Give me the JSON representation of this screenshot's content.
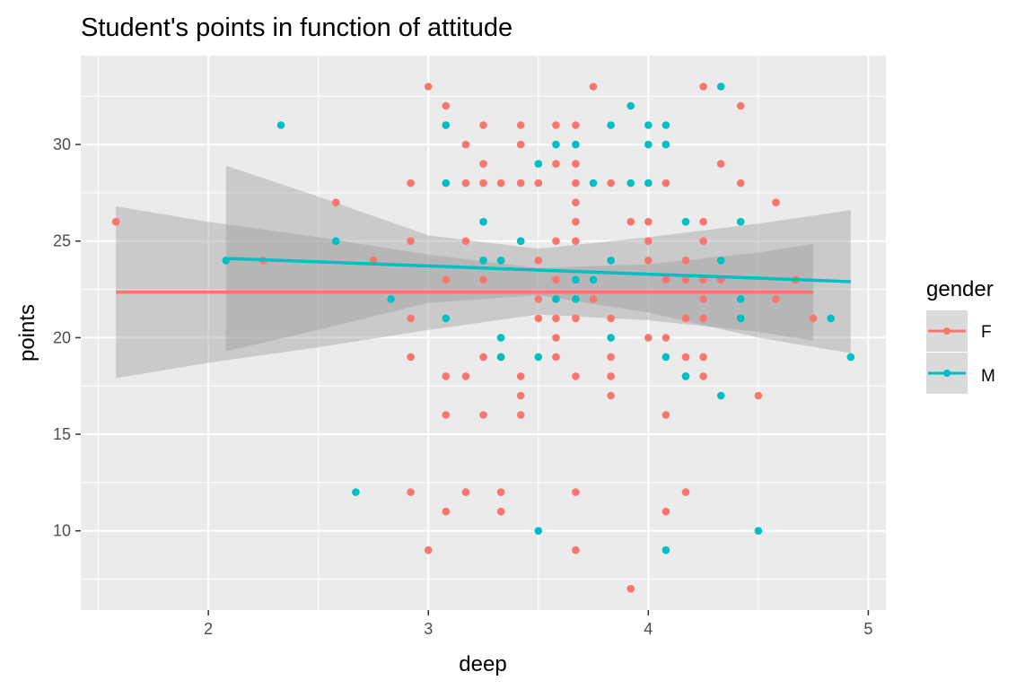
{
  "chart_data": {
    "type": "scatter",
    "title": "Student's points in function of attitude",
    "xlabel": "deep",
    "ylabel": "points",
    "xlim": [
      1.42,
      5.08
    ],
    "ylim": [
      5.9,
      34.6
    ],
    "xticks": [
      2,
      3,
      4,
      5
    ],
    "yticks": [
      10,
      15,
      20,
      25,
      30
    ],
    "xtick_labels": [
      "2",
      "3",
      "4",
      "5"
    ],
    "ytick_labels": [
      "10",
      "15",
      "20",
      "25",
      "30"
    ],
    "grid": true,
    "legend": {
      "title": "gender",
      "position": "right"
    },
    "colors": {
      "F": "#F8766D",
      "M": "#00BFC4",
      "panel": "#EBEBEB",
      "grid": "#FFFFFF",
      "band": "#999999"
    },
    "series": [
      {
        "name": "F",
        "color": "#F8766D",
        "points": [
          [
            1.58,
            26
          ],
          [
            2.25,
            24
          ],
          [
            2.58,
            27
          ],
          [
            2.75,
            24
          ],
          [
            2.92,
            28
          ],
          [
            2.92,
            25
          ],
          [
            2.92,
            21
          ],
          [
            2.92,
            19
          ],
          [
            2.92,
            12
          ],
          [
            3.0,
            33
          ],
          [
            3.0,
            9
          ],
          [
            3.08,
            32
          ],
          [
            3.08,
            31
          ],
          [
            3.08,
            23
          ],
          [
            3.08,
            18
          ],
          [
            3.08,
            16
          ],
          [
            3.08,
            11
          ],
          [
            3.17,
            30
          ],
          [
            3.17,
            28
          ],
          [
            3.17,
            25
          ],
          [
            3.17,
            18
          ],
          [
            3.17,
            12
          ],
          [
            3.25,
            31
          ],
          [
            3.25,
            29
          ],
          [
            3.25,
            28
          ],
          [
            3.25,
            23
          ],
          [
            3.25,
            19
          ],
          [
            3.25,
            16
          ],
          [
            3.33,
            28
          ],
          [
            3.33,
            24
          ],
          [
            3.33,
            19
          ],
          [
            3.33,
            12
          ],
          [
            3.33,
            11
          ],
          [
            3.42,
            31
          ],
          [
            3.42,
            30
          ],
          [
            3.42,
            28
          ],
          [
            3.42,
            25
          ],
          [
            3.42,
            18
          ],
          [
            3.42,
            17
          ],
          [
            3.42,
            16
          ],
          [
            3.5,
            28
          ],
          [
            3.5,
            24
          ],
          [
            3.5,
            22
          ],
          [
            3.5,
            21
          ],
          [
            3.58,
            31
          ],
          [
            3.58,
            29
          ],
          [
            3.58,
            25
          ],
          [
            3.58,
            23
          ],
          [
            3.58,
            22
          ],
          [
            3.58,
            21
          ],
          [
            3.58,
            20
          ],
          [
            3.58,
            19
          ],
          [
            3.67,
            31
          ],
          [
            3.67,
            29
          ],
          [
            3.67,
            28
          ],
          [
            3.67,
            27
          ],
          [
            3.67,
            26
          ],
          [
            3.67,
            25
          ],
          [
            3.67,
            21
          ],
          [
            3.67,
            18
          ],
          [
            3.67,
            12
          ],
          [
            3.67,
            9
          ],
          [
            3.75,
            33
          ],
          [
            3.75,
            22
          ],
          [
            3.83,
            28
          ],
          [
            3.83,
            24
          ],
          [
            3.83,
            21
          ],
          [
            3.83,
            19
          ],
          [
            3.83,
            18
          ],
          [
            3.83,
            17
          ],
          [
            3.92,
            26
          ],
          [
            3.92,
            7
          ],
          [
            4.0,
            26
          ],
          [
            4.0,
            25
          ],
          [
            4.0,
            24
          ],
          [
            4.0,
            20
          ],
          [
            4.08,
            28
          ],
          [
            4.08,
            23
          ],
          [
            4.08,
            20
          ],
          [
            4.08,
            16
          ],
          [
            4.08,
            11
          ],
          [
            4.17,
            24
          ],
          [
            4.17,
            23
          ],
          [
            4.17,
            21
          ],
          [
            4.17,
            19
          ],
          [
            4.17,
            18
          ],
          [
            4.17,
            12
          ],
          [
            4.25,
            33
          ],
          [
            4.25,
            26
          ],
          [
            4.25,
            25
          ],
          [
            4.25,
            23
          ],
          [
            4.25,
            22
          ],
          [
            4.25,
            21
          ],
          [
            4.25,
            19
          ],
          [
            4.25,
            18
          ],
          [
            4.33,
            29
          ],
          [
            4.33,
            23
          ],
          [
            4.42,
            32
          ],
          [
            4.42,
            28
          ],
          [
            4.5,
            17
          ],
          [
            4.58,
            27
          ],
          [
            4.58,
            22
          ],
          [
            4.67,
            23
          ],
          [
            4.75,
            21
          ]
        ],
        "fit": {
          "x": [
            1.58,
            4.75
          ],
          "y": [
            22.35,
            22.35
          ]
        },
        "band_x": [
          1.58,
          2.0,
          2.5,
          3.0,
          3.5,
          4.0,
          4.5,
          4.75
        ],
        "band_upper": [
          26.8,
          26.0,
          25.2,
          24.3,
          23.6,
          23.8,
          24.4,
          24.85
        ],
        "band_lower": [
          17.9,
          18.7,
          19.5,
          20.4,
          21.2,
          20.9,
          20.3,
          19.85
        ]
      },
      {
        "name": "M",
        "color": "#00BFC4",
        "points": [
          [
            2.08,
            24
          ],
          [
            2.33,
            31
          ],
          [
            2.58,
            25
          ],
          [
            2.67,
            12
          ],
          [
            2.83,
            22
          ],
          [
            3.08,
            31
          ],
          [
            3.08,
            28
          ],
          [
            3.08,
            21
          ],
          [
            3.25,
            26
          ],
          [
            3.25,
            24
          ],
          [
            3.33,
            24
          ],
          [
            3.33,
            20
          ],
          [
            3.33,
            19
          ],
          [
            3.42,
            25
          ],
          [
            3.5,
            29
          ],
          [
            3.5,
            19
          ],
          [
            3.5,
            10
          ],
          [
            3.58,
            30
          ],
          [
            3.58,
            22
          ],
          [
            3.67,
            30
          ],
          [
            3.67,
            23
          ],
          [
            3.67,
            22
          ],
          [
            3.75,
            28
          ],
          [
            3.75,
            23
          ],
          [
            3.83,
            31
          ],
          [
            3.83,
            24
          ],
          [
            3.83,
            20
          ],
          [
            3.92,
            32
          ],
          [
            3.92,
            28
          ],
          [
            4.0,
            31
          ],
          [
            4.0,
            30
          ],
          [
            4.0,
            28
          ],
          [
            4.08,
            31
          ],
          [
            4.08,
            30
          ],
          [
            4.08,
            19
          ],
          [
            4.08,
            9
          ],
          [
            4.17,
            26
          ],
          [
            4.17,
            18
          ],
          [
            4.33,
            33
          ],
          [
            4.33,
            24
          ],
          [
            4.33,
            17
          ],
          [
            4.42,
            26
          ],
          [
            4.42,
            22
          ],
          [
            4.42,
            21
          ],
          [
            4.5,
            10
          ],
          [
            4.83,
            21
          ],
          [
            4.92,
            19
          ]
        ],
        "fit": {
          "x": [
            2.08,
            4.92
          ],
          "y": [
            24.1,
            22.9
          ]
        },
        "band_x": [
          2.08,
          2.5,
          3.0,
          3.5,
          4.0,
          4.5,
          4.92
        ],
        "band_upper": [
          28.9,
          27.3,
          25.3,
          24.6,
          25.2,
          25.9,
          26.6
        ],
        "band_lower": [
          19.3,
          20.4,
          21.8,
          22.2,
          21.3,
          20.0,
          19.2
        ]
      }
    ]
  }
}
